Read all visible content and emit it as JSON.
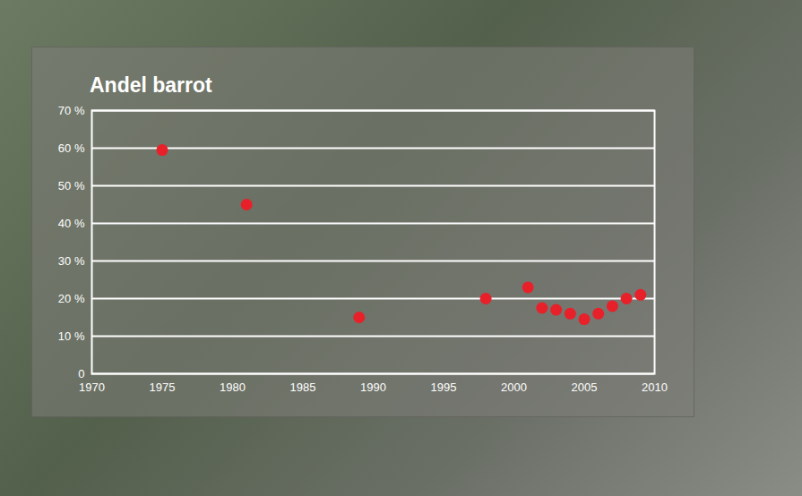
{
  "chart_data": {
    "type": "scatter",
    "title": "Andel barrot",
    "x": [
      1975,
      1981,
      1989,
      1998,
      2001,
      2002,
      2003,
      2004,
      2005,
      2006,
      2007,
      2008,
      2009
    ],
    "values": [
      59.5,
      45,
      15,
      20,
      23,
      17.5,
      17,
      16,
      14.5,
      16,
      18,
      20,
      21
    ],
    "color": "#e8202a",
    "marker": "circle",
    "xlim": [
      1970,
      2010
    ],
    "xticks": [
      1970,
      1975,
      1980,
      1985,
      1990,
      1995,
      2000,
      2005,
      2010
    ],
    "ylim": [
      0,
      70
    ],
    "yticks": [
      0,
      {
        "value": 10,
        "label": "10 %"
      },
      {
        "value": 20,
        "label": "20 %"
      },
      {
        "value": 30,
        "label": "30 %"
      },
      {
        "value": 40,
        "label": "40 %"
      },
      {
        "value": 50,
        "label": "50 %"
      },
      {
        "value": 60,
        "label": "60 %"
      },
      {
        "value": 70,
        "label": "70 %"
      }
    ],
    "grid": true
  }
}
